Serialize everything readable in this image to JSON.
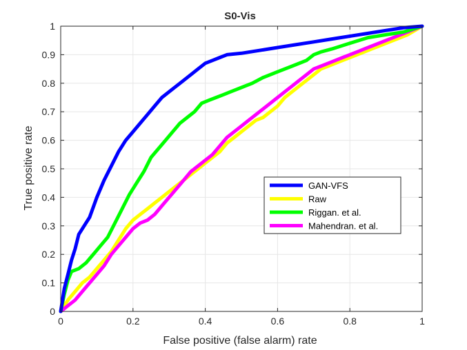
{
  "chart_data": {
    "type": "line",
    "title": "S0-Vis",
    "xlabel": "False positive (false alarm) rate",
    "ylabel": "True positive  rate",
    "xlim": [
      0,
      1
    ],
    "ylim": [
      0,
      1
    ],
    "xticks": [
      "0",
      "0.2",
      "0.4",
      "0.6",
      "0.8",
      "1"
    ],
    "yticks": [
      "0",
      "0.1",
      "0.2",
      "0.3",
      "0.4",
      "0.5",
      "0.6",
      "0.7",
      "0.8",
      "0.9",
      "1"
    ],
    "grid": true,
    "legend_position": "center-right",
    "series": [
      {
        "name": "GAN-VFS",
        "color": "#0000ff",
        "points": [
          [
            0,
            0
          ],
          [
            0.01,
            0.08
          ],
          [
            0.02,
            0.13
          ],
          [
            0.03,
            0.18
          ],
          [
            0.04,
            0.22
          ],
          [
            0.05,
            0.27
          ],
          [
            0.06,
            0.29
          ],
          [
            0.08,
            0.33
          ],
          [
            0.1,
            0.4
          ],
          [
            0.12,
            0.46
          ],
          [
            0.14,
            0.51
          ],
          [
            0.16,
            0.56
          ],
          [
            0.18,
            0.6
          ],
          [
            0.2,
            0.63
          ],
          [
            0.22,
            0.66
          ],
          [
            0.24,
            0.69
          ],
          [
            0.26,
            0.72
          ],
          [
            0.28,
            0.75
          ],
          [
            0.3,
            0.77
          ],
          [
            0.32,
            0.79
          ],
          [
            0.34,
            0.81
          ],
          [
            0.36,
            0.83
          ],
          [
            0.38,
            0.85
          ],
          [
            0.4,
            0.87
          ],
          [
            0.42,
            0.88
          ],
          [
            0.44,
            0.89
          ],
          [
            0.46,
            0.9
          ],
          [
            0.5,
            0.905
          ],
          [
            0.55,
            0.915
          ],
          [
            0.6,
            0.925
          ],
          [
            0.65,
            0.935
          ],
          [
            0.7,
            0.945
          ],
          [
            0.75,
            0.955
          ],
          [
            0.8,
            0.965
          ],
          [
            0.85,
            0.975
          ],
          [
            0.9,
            0.985
          ],
          [
            0.95,
            0.995
          ],
          [
            1,
            1
          ]
        ]
      },
      {
        "name": "Raw",
        "color": "#ffff00",
        "points": [
          [
            0,
            0
          ],
          [
            0.02,
            0.04
          ],
          [
            0.04,
            0.07
          ],
          [
            0.06,
            0.1
          ],
          [
            0.08,
            0.12
          ],
          [
            0.1,
            0.15
          ],
          [
            0.12,
            0.18
          ],
          [
            0.14,
            0.21
          ],
          [
            0.16,
            0.25
          ],
          [
            0.18,
            0.29
          ],
          [
            0.2,
            0.32
          ],
          [
            0.22,
            0.34
          ],
          [
            0.24,
            0.36
          ],
          [
            0.26,
            0.38
          ],
          [
            0.28,
            0.4
          ],
          [
            0.3,
            0.42
          ],
          [
            0.32,
            0.44
          ],
          [
            0.34,
            0.46
          ],
          [
            0.36,
            0.48
          ],
          [
            0.38,
            0.5
          ],
          [
            0.4,
            0.52
          ],
          [
            0.42,
            0.54
          ],
          [
            0.44,
            0.56
          ],
          [
            0.46,
            0.59
          ],
          [
            0.48,
            0.61
          ],
          [
            0.5,
            0.63
          ],
          [
            0.52,
            0.65
          ],
          [
            0.54,
            0.67
          ],
          [
            0.56,
            0.68
          ],
          [
            0.58,
            0.7
          ],
          [
            0.6,
            0.72
          ],
          [
            0.62,
            0.75
          ],
          [
            0.64,
            0.77
          ],
          [
            0.66,
            0.79
          ],
          [
            0.68,
            0.81
          ],
          [
            0.7,
            0.83
          ],
          [
            0.72,
            0.85
          ],
          [
            0.74,
            0.86
          ],
          [
            0.76,
            0.87
          ],
          [
            0.78,
            0.88
          ],
          [
            0.8,
            0.89
          ],
          [
            0.82,
            0.9
          ],
          [
            0.84,
            0.91
          ],
          [
            0.86,
            0.92
          ],
          [
            0.88,
            0.93
          ],
          [
            0.9,
            0.94
          ],
          [
            0.92,
            0.95
          ],
          [
            0.94,
            0.96
          ],
          [
            0.96,
            0.97
          ],
          [
            0.98,
            0.985
          ],
          [
            1,
            1
          ]
        ]
      },
      {
        "name": "Riggan. et al.",
        "color": "#00ff00",
        "points": [
          [
            0,
            0
          ],
          [
            0.01,
            0.06
          ],
          [
            0.02,
            0.11
          ],
          [
            0.03,
            0.14
          ],
          [
            0.05,
            0.15
          ],
          [
            0.07,
            0.17
          ],
          [
            0.09,
            0.2
          ],
          [
            0.11,
            0.23
          ],
          [
            0.13,
            0.26
          ],
          [
            0.15,
            0.31
          ],
          [
            0.17,
            0.36
          ],
          [
            0.19,
            0.41
          ],
          [
            0.21,
            0.45
          ],
          [
            0.23,
            0.49
          ],
          [
            0.25,
            0.54
          ],
          [
            0.27,
            0.57
          ],
          [
            0.29,
            0.6
          ],
          [
            0.31,
            0.63
          ],
          [
            0.33,
            0.66
          ],
          [
            0.35,
            0.68
          ],
          [
            0.37,
            0.7
          ],
          [
            0.39,
            0.73
          ],
          [
            0.41,
            0.74
          ],
          [
            0.43,
            0.75
          ],
          [
            0.45,
            0.76
          ],
          [
            0.47,
            0.77
          ],
          [
            0.5,
            0.785
          ],
          [
            0.53,
            0.8
          ],
          [
            0.56,
            0.82
          ],
          [
            0.6,
            0.84
          ],
          [
            0.64,
            0.86
          ],
          [
            0.68,
            0.88
          ],
          [
            0.7,
            0.9
          ],
          [
            0.72,
            0.91
          ],
          [
            0.75,
            0.92
          ],
          [
            0.8,
            0.94
          ],
          [
            0.85,
            0.96
          ],
          [
            0.9,
            0.97
          ],
          [
            0.95,
            0.98
          ],
          [
            1,
            1
          ]
        ]
      },
      {
        "name": "Mahendran. et al.",
        "color": "#ff00ff",
        "points": [
          [
            0,
            0
          ],
          [
            0.02,
            0.02
          ],
          [
            0.04,
            0.04
          ],
          [
            0.06,
            0.07
          ],
          [
            0.08,
            0.1
          ],
          [
            0.1,
            0.13
          ],
          [
            0.12,
            0.16
          ],
          [
            0.14,
            0.2
          ],
          [
            0.16,
            0.23
          ],
          [
            0.18,
            0.26
          ],
          [
            0.2,
            0.29
          ],
          [
            0.22,
            0.31
          ],
          [
            0.24,
            0.32
          ],
          [
            0.26,
            0.34
          ],
          [
            0.28,
            0.37
          ],
          [
            0.3,
            0.4
          ],
          [
            0.32,
            0.43
          ],
          [
            0.34,
            0.46
          ],
          [
            0.36,
            0.49
          ],
          [
            0.38,
            0.51
          ],
          [
            0.4,
            0.53
          ],
          [
            0.42,
            0.55
          ],
          [
            0.44,
            0.58
          ],
          [
            0.46,
            0.61
          ],
          [
            0.48,
            0.63
          ],
          [
            0.5,
            0.65
          ],
          [
            0.52,
            0.67
          ],
          [
            0.54,
            0.69
          ],
          [
            0.56,
            0.71
          ],
          [
            0.58,
            0.73
          ],
          [
            0.6,
            0.75
          ],
          [
            0.62,
            0.77
          ],
          [
            0.64,
            0.79
          ],
          [
            0.66,
            0.81
          ],
          [
            0.68,
            0.83
          ],
          [
            0.7,
            0.85
          ],
          [
            0.72,
            0.86
          ],
          [
            0.74,
            0.87
          ],
          [
            0.76,
            0.88
          ],
          [
            0.78,
            0.89
          ],
          [
            0.8,
            0.9
          ],
          [
            0.82,
            0.91
          ],
          [
            0.84,
            0.92
          ],
          [
            0.86,
            0.93
          ],
          [
            0.88,
            0.94
          ],
          [
            0.9,
            0.95
          ],
          [
            0.92,
            0.96
          ],
          [
            0.94,
            0.97
          ],
          [
            0.96,
            0.98
          ],
          [
            0.98,
            0.99
          ],
          [
            1,
            1
          ]
        ]
      }
    ]
  }
}
